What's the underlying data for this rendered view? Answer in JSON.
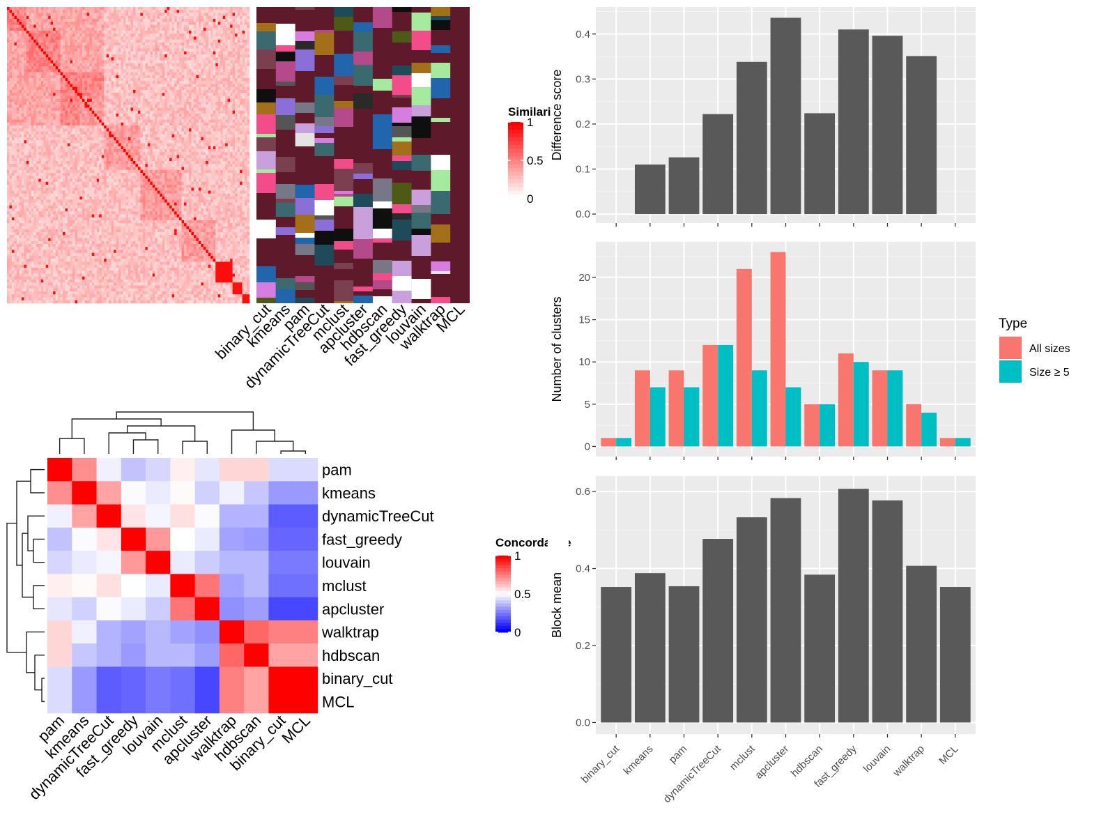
{
  "methods_order_top": [
    "binary_cut",
    "kmeans",
    "pam",
    "dynamicTreeCut",
    "mclust",
    "apcluster",
    "hdbscan",
    "fast_greedy",
    "louvain",
    "walktrap",
    "MCL"
  ],
  "similarity_heatmap": {
    "legend_title": "Similarity",
    "legend_ticks": [
      "1",
      "0.5",
      "0"
    ],
    "n_terms": 100,
    "colors": {
      "low": "#ffffff",
      "high": "#ff0000"
    }
  },
  "cluster_label_heatmap": {
    "background_color": "#5e1a2b"
  },
  "concordance_heatmap": {
    "legend_title": "Concordance",
    "legend_ticks": [
      "1",
      "0.5",
      "0"
    ],
    "row_labels": [
      "pam",
      "kmeans",
      "dynamicTreeCut",
      "fast_greedy",
      "louvain",
      "mclust",
      "apcluster",
      "walktrap",
      "hdbscan",
      "binary_cut",
      "MCL"
    ],
    "column_labels": [
      "pam",
      "kmeans",
      "dynamicTreeCut",
      "fast_greedy",
      "louvain",
      "mclust",
      "apcluster",
      "walktrap",
      "hdbscan",
      "binary_cut",
      "MCL"
    ],
    "colors": {
      "low": "#0000ff",
      "mid": "#ffffff",
      "high": "#ff0000"
    },
    "values": [
      [
        1.0,
        0.72,
        0.47,
        0.38,
        0.42,
        0.53,
        0.45,
        0.58,
        0.58,
        0.43,
        0.43
      ],
      [
        0.72,
        1.0,
        0.68,
        0.49,
        0.46,
        0.51,
        0.41,
        0.47,
        0.39,
        0.3,
        0.3
      ],
      [
        0.47,
        0.68,
        1.0,
        0.55,
        0.48,
        0.56,
        0.49,
        0.35,
        0.35,
        0.18,
        0.18
      ],
      [
        0.38,
        0.49,
        0.55,
        1.0,
        0.7,
        0.5,
        0.46,
        0.32,
        0.3,
        0.2,
        0.2
      ],
      [
        0.42,
        0.46,
        0.48,
        0.7,
        1.0,
        0.46,
        0.4,
        0.36,
        0.36,
        0.24,
        0.24
      ],
      [
        0.53,
        0.51,
        0.56,
        0.5,
        0.46,
        1.0,
        0.77,
        0.32,
        0.36,
        0.22,
        0.22
      ],
      [
        0.45,
        0.41,
        0.49,
        0.46,
        0.4,
        0.77,
        1.0,
        0.28,
        0.31,
        0.14,
        0.14
      ],
      [
        0.58,
        0.47,
        0.35,
        0.32,
        0.36,
        0.32,
        0.28,
        1.0,
        0.8,
        0.75,
        0.75
      ],
      [
        0.58,
        0.39,
        0.35,
        0.3,
        0.36,
        0.36,
        0.31,
        0.8,
        1.0,
        0.68,
        0.68
      ],
      [
        0.43,
        0.3,
        0.18,
        0.2,
        0.24,
        0.22,
        0.14,
        0.75,
        0.68,
        1.0,
        1.0
      ],
      [
        0.43,
        0.3,
        0.18,
        0.2,
        0.24,
        0.22,
        0.14,
        0.75,
        0.68,
        1.0,
        1.0
      ]
    ]
  },
  "chart_data": [
    {
      "type": "bar",
      "ylabel": "Difference score",
      "categories": [
        "binary_cut",
        "kmeans",
        "pam",
        "dynamicTreeCut",
        "mclust",
        "apcluster",
        "hdbscan",
        "fast_greedy",
        "louvain",
        "walktrap",
        "MCL"
      ],
      "values": [
        0,
        0.11,
        0.126,
        0.222,
        0.338,
        0.436,
        0.224,
        0.41,
        0.396,
        0.351,
        0
      ],
      "ylim": [
        -0.02,
        0.46
      ],
      "yticks": [
        0.0,
        0.1,
        0.2,
        0.3,
        0.4
      ],
      "ytick_labels": [
        "0.0",
        "0.1",
        "0.2",
        "0.3",
        "0.4"
      ],
      "bar_color": "#595959",
      "grid": true
    },
    {
      "type": "bar",
      "ylabel": "Number of clusters",
      "categories": [
        "binary_cut",
        "kmeans",
        "pam",
        "dynamicTreeCut",
        "mclust",
        "apcluster",
        "hdbscan",
        "fast_greedy",
        "louvain",
        "walktrap",
        "MCL"
      ],
      "series": [
        {
          "name": "All sizes",
          "color": "#f8766d",
          "values": [
            1,
            9,
            9,
            12,
            21,
            23,
            5,
            11,
            9,
            5,
            1
          ]
        },
        {
          "name": "Size ≥ 5",
          "color": "#00bfc4",
          "values": [
            1,
            7,
            7,
            12,
            9,
            7,
            5,
            10,
            9,
            4,
            1
          ]
        }
      ],
      "ylim": [
        -1.2,
        24.2
      ],
      "yticks": [
        0,
        5,
        10,
        15,
        20
      ],
      "ytick_labels": [
        "0",
        "5",
        "10",
        "15",
        "20"
      ],
      "legend_title": "Type",
      "legend_position": "right",
      "grid": true
    },
    {
      "type": "bar",
      "ylabel": "Block mean",
      "categories": [
        "binary_cut",
        "kmeans",
        "pam",
        "dynamicTreeCut",
        "mclust",
        "apcluster",
        "hdbscan",
        "fast_greedy",
        "louvain",
        "walktrap",
        "MCL"
      ],
      "values": [
        0.352,
        0.388,
        0.354,
        0.477,
        0.533,
        0.583,
        0.384,
        0.607,
        0.577,
        0.407,
        0.352
      ],
      "ylim": [
        -0.03,
        0.64
      ],
      "yticks": [
        0.0,
        0.2,
        0.4,
        0.6
      ],
      "ytick_labels": [
        "0.0",
        "0.2",
        "0.4",
        "0.6"
      ],
      "bar_color": "#595959",
      "grid": true
    }
  ]
}
